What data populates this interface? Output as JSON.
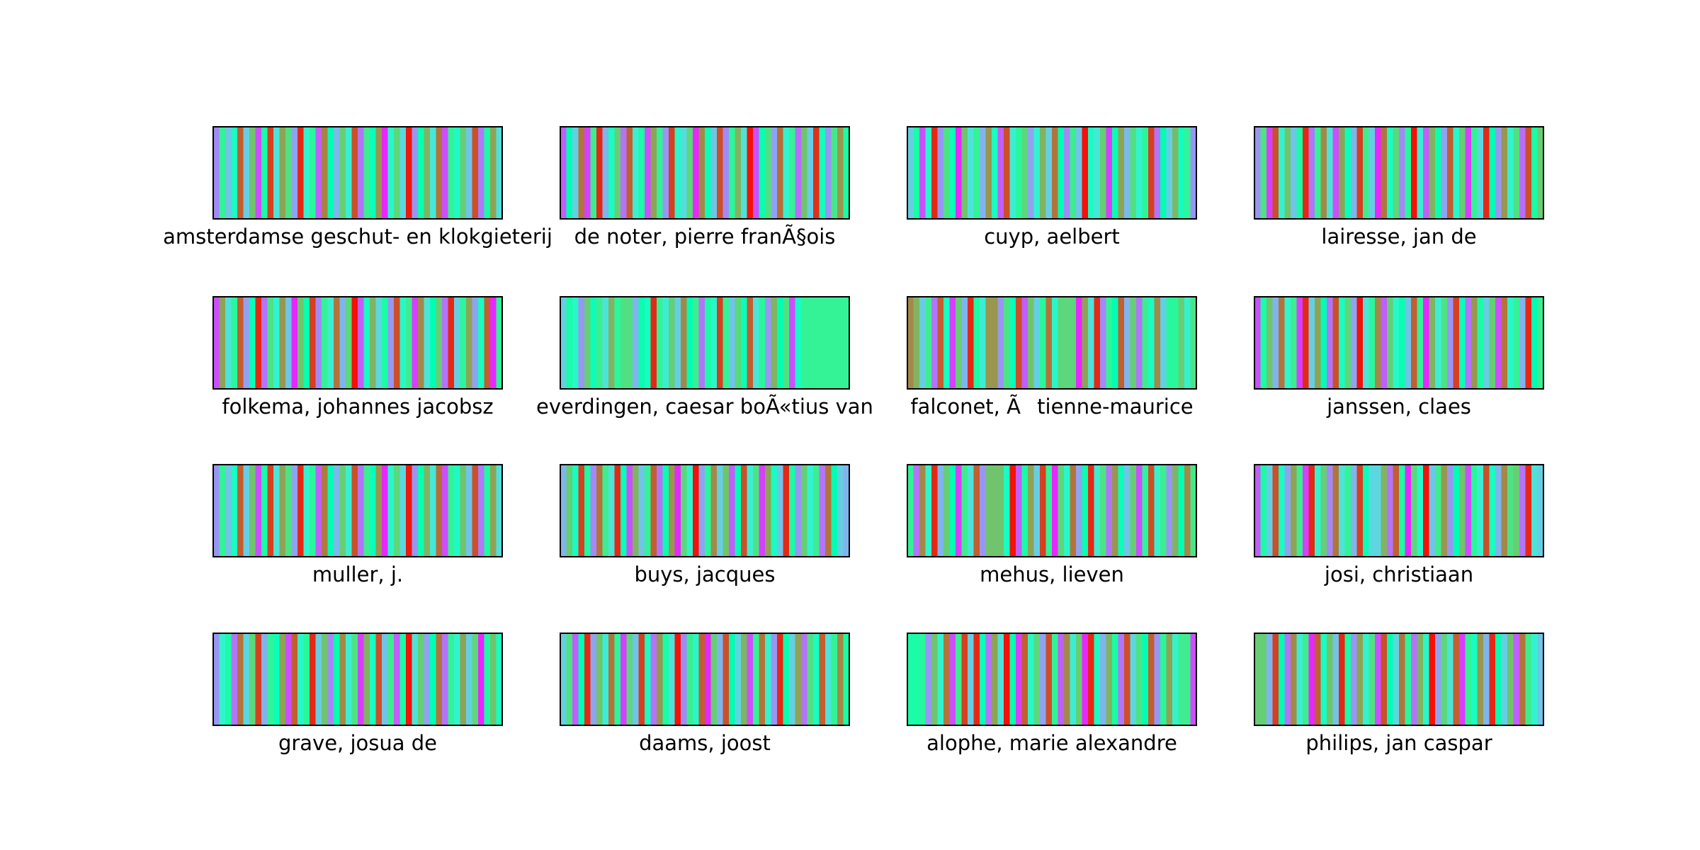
{
  "chart_data": {
    "type": "heatmap",
    "colormap": "rainbow",
    "panels": [
      {
        "label": "amsterdamse geschut- en klokgieterij",
        "values": [
          0.18,
          0.6,
          0.28,
          0.45,
          0.88,
          0.3,
          0.72,
          0.1,
          0.55,
          0.92,
          0.35,
          0.78,
          0.66,
          0.22,
          0.95,
          0.4,
          0.58,
          0.12,
          0.83,
          0.5,
          0.26,
          0.7,
          0.38,
          0.9,
          0.15,
          0.62,
          0.48,
          0.8,
          0.05,
          0.42,
          0.68,
          0.32,
          0.97,
          0.2,
          0.52,
          0.75,
          0.36,
          0.85,
          0.1,
          0.6,
          0.44,
          0.7,
          0.28,
          0.9,
          0.16,
          0.55,
          0.78,
          0.34
        ]
      },
      {
        "label": "de noter, pierre franÃ§ois",
        "values": [
          0.12,
          0.5,
          0.3,
          0.85,
          0.08,
          0.62,
          0.95,
          0.25,
          0.45,
          0.7,
          0.15,
          0.88,
          0.38,
          0.55,
          0.1,
          0.78,
          0.6,
          0.2,
          0.92,
          0.42,
          0.33,
          0.68,
          0.05,
          0.82,
          0.48,
          0.28,
          0.9,
          0.18,
          0.58,
          0.75,
          0.35,
          0.98,
          0.1,
          0.52,
          0.66,
          0.22,
          0.86,
          0.4,
          0.6,
          0.14,
          0.72,
          0.3,
          0.94,
          0.46,
          0.2,
          0.64,
          0.8,
          0.55
        ]
      },
      {
        "label": "cuyp, aelbert",
        "values": [
          0.3,
          0.55,
          0.1,
          0.42,
          0.95,
          0.2,
          0.65,
          0.48,
          0.05,
          0.72,
          0.35,
          0.6,
          0.25,
          0.8,
          0.45,
          0.12,
          0.9,
          0.38,
          0.58,
          0.68,
          0.22,
          0.4,
          0.75,
          0.3,
          0.85,
          0.5,
          0.18,
          0.62,
          0.28,
          0.98,
          0.44,
          0.36,
          0.7,
          0.08,
          0.52,
          0.78,
          0.26,
          0.66,
          0.4,
          0.58,
          0.92,
          0.15,
          0.5,
          0.3,
          0.74,
          0.46,
          0.6,
          0.2
        ]
      },
      {
        "label": "lairesse, jan de",
        "values": [
          0.2,
          0.65,
          0.08,
          0.9,
          0.4,
          0.72,
          0.28,
          0.55,
          0.95,
          0.15,
          0.6,
          0.82,
          0.35,
          0.1,
          0.78,
          0.48,
          0.25,
          0.92,
          0.62,
          0.3,
          0.05,
          0.85,
          0.45,
          0.68,
          0.18,
          0.58,
          0.98,
          0.38,
          0.12,
          0.75,
          0.52,
          0.22,
          0.88,
          0.42,
          0.7,
          0.08,
          0.6,
          0.32,
          0.95,
          0.5,
          0.2,
          0.8,
          0.4,
          0.66,
          0.14,
          0.9,
          0.55,
          0.7
        ]
      },
      {
        "label": "folkema, johannes jacobsz",
        "values": [
          0.1,
          0.78,
          0.35,
          0.58,
          0.88,
          0.22,
          0.48,
          0.95,
          0.15,
          0.65,
          0.4,
          0.8,
          0.28,
          0.05,
          0.72,
          0.52,
          0.92,
          0.18,
          0.6,
          0.38,
          0.85,
          0.25,
          0.68,
          0.98,
          0.12,
          0.45,
          0.75,
          0.32,
          0.55,
          0.2,
          0.9,
          0.42,
          0.62,
          0.08,
          0.82,
          0.35,
          0.5,
          0.7,
          0.15,
          0.95,
          0.3,
          0.58,
          0.78,
          0.22,
          0.45,
          0.88,
          0.05,
          0.6
        ]
      },
      {
        "label": "everdingen, caesar boÃ«tius van",
        "values": [
          0.3,
          0.55,
          0.42,
          0.2,
          0.7,
          0.48,
          0.62,
          0.35,
          0.75,
          0.58,
          0.66,
          0.66,
          0.25,
          0.52,
          0.45,
          0.95,
          0.6,
          0.38,
          0.7,
          0.3,
          0.82,
          0.5,
          0.62,
          0.15,
          0.55,
          0.42,
          0.92,
          0.6,
          0.28,
          0.68,
          0.48,
          0.88,
          0.35,
          0.58,
          0.2,
          0.75,
          0.5,
          0.65,
          0.1,
          0.45,
          0.6,
          0.6,
          0.6,
          0.6,
          0.6,
          0.6,
          0.6,
          0.6
        ]
      },
      {
        "label": "falconet, Ãtienne-maurice",
        "values": [
          0.82,
          0.75,
          0.3,
          0.62,
          0.15,
          0.88,
          0.45,
          0.08,
          0.7,
          0.25,
          0.95,
          0.55,
          0.38,
          0.8,
          0.8,
          0.2,
          0.65,
          0.48,
          0.9,
          0.12,
          0.72,
          0.3,
          0.58,
          0.85,
          0.42,
          0.68,
          0.68,
          0.68,
          0.05,
          0.78,
          0.35,
          0.95,
          0.18,
          0.6,
          0.5,
          0.88,
          0.25,
          0.7,
          0.15,
          0.62,
          0.45,
          0.82,
          0.3,
          0.58,
          0.58,
          0.7,
          0.4,
          0.65
        ]
      },
      {
        "label": "janssen, claes",
        "values": [
          0.1,
          0.55,
          0.72,
          0.25,
          0.85,
          0.4,
          0.62,
          0.08,
          0.95,
          0.3,
          0.78,
          0.5,
          0.15,
          0.9,
          0.45,
          0.68,
          0.22,
          0.98,
          0.35,
          0.58,
          0.82,
          0.12,
          0.7,
          0.42,
          0.52,
          0.28,
          0.88,
          0.6,
          0.05,
          0.75,
          0.38,
          0.65,
          0.2,
          0.92,
          0.48,
          0.15,
          0.8,
          0.55,
          0.3,
          0.7,
          0.1,
          0.85,
          0.42,
          0.6,
          0.25,
          0.95,
          0.5,
          0.62
        ]
      },
      {
        "label": "muller, j.",
        "values": [
          0.2,
          0.6,
          0.28,
          0.45,
          0.88,
          0.3,
          0.72,
          0.1,
          0.55,
          0.92,
          0.35,
          0.78,
          0.65,
          0.22,
          0.95,
          0.4,
          0.58,
          0.12,
          0.84,
          0.5,
          0.26,
          0.7,
          0.38,
          0.9,
          0.15,
          0.62,
          0.48,
          0.8,
          0.05,
          0.42,
          0.68,
          0.32,
          0.97,
          0.2,
          0.52,
          0.75,
          0.36,
          0.86,
          0.1,
          0.6,
          0.44,
          0.72,
          0.28,
          0.9,
          0.16,
          0.56,
          0.78,
          0.34
        ]
      },
      {
        "label": "buys, jacques",
        "values": [
          0.25,
          0.7,
          0.45,
          0.92,
          0.55,
          0.18,
          0.85,
          0.62,
          0.35,
          0.95,
          0.48,
          0.1,
          0.75,
          0.28,
          0.6,
          0.88,
          0.15,
          0.52,
          0.8,
          0.05,
          0.68,
          0.4,
          0.98,
          0.22,
          0.58,
          0.82,
          0.3,
          0.72,
          0.12,
          0.5,
          0.9,
          0.38,
          0.65,
          0.08,
          0.78,
          0.45,
          0.28,
          0.95,
          0.55,
          0.2,
          0.7,
          0.4,
          0.62,
          0.15,
          0.85,
          0.5,
          0.3,
          0.25
        ]
      },
      {
        "label": "mehus, lieven",
        "values": [
          0.6,
          0.15,
          0.82,
          0.4,
          0.95,
          0.25,
          0.7,
          0.5,
          0.08,
          0.62,
          0.35,
          0.88,
          0.2,
          0.72,
          0.72,
          0.72,
          0.45,
          0.98,
          0.12,
          0.55,
          0.78,
          0.3,
          0.92,
          0.6,
          0.05,
          0.68,
          0.42,
          0.85,
          0.22,
          0.52,
          0.95,
          0.38,
          0.65,
          0.15,
          0.8,
          0.48,
          0.28,
          0.7,
          0.1,
          0.58,
          0.9,
          0.4,
          0.62,
          0.2,
          0.75,
          0.5,
          0.82,
          0.64
        ]
      },
      {
        "label": "josi, christiaan",
        "values": [
          0.12,
          0.55,
          0.3,
          0.9,
          0.45,
          0.22,
          0.78,
          0.62,
          0.08,
          0.95,
          0.4,
          0.7,
          0.18,
          0.85,
          0.35,
          0.6,
          0.25,
          0.92,
          0.48,
          0.32,
          0.32,
          0.75,
          0.15,
          0.88,
          0.55,
          0.05,
          0.68,
          0.42,
          0.98,
          0.28,
          0.62,
          0.8,
          0.2,
          0.5,
          0.72,
          0.1,
          0.58,
          0.38,
          0.9,
          0.45,
          0.25,
          0.82,
          0.65,
          0.7,
          0.15,
          0.95,
          0.35,
          0.3
        ]
      },
      {
        "label": "grave, josua de",
        "values": [
          0.2,
          0.4,
          0.55,
          0.15,
          0.85,
          0.32,
          0.68,
          0.92,
          0.25,
          0.6,
          0.48,
          0.78,
          0.1,
          0.88,
          0.42,
          0.58,
          0.95,
          0.3,
          0.72,
          0.18,
          0.52,
          0.82,
          0.38,
          0.65,
          0.08,
          0.75,
          0.45,
          0.9,
          0.28,
          0.62,
          0.12,
          0.55,
          0.98,
          0.35,
          0.7,
          0.22,
          0.5,
          0.85,
          0.15,
          0.6,
          0.4,
          0.78,
          0.3,
          0.68,
          0.05,
          0.55,
          0.72,
          0.45
        ]
      },
      {
        "label": "daams, joost",
        "values": [
          0.3,
          0.65,
          0.12,
          0.5,
          0.95,
          0.22,
          0.72,
          0.38,
          0.85,
          0.58,
          0.08,
          0.68,
          0.28,
          0.92,
          0.45,
          0.15,
          0.8,
          0.55,
          0.35,
          0.98,
          0.18,
          0.62,
          0.42,
          0.88,
          0.05,
          0.7,
          0.25,
          0.9,
          0.5,
          0.32,
          0.75,
          0.1,
          0.6,
          0.85,
          0.4,
          0.2,
          0.95,
          0.52,
          0.3,
          0.78,
          0.15,
          0.66,
          0.45,
          0.88,
          0.35,
          0.6,
          0.82,
          0.55
        ]
      },
      {
        "label": "alophe, marie alexandre",
        "values": [
          0.55,
          0.55,
          0.58,
          0.2,
          0.72,
          0.4,
          0.85,
          0.1,
          0.62,
          0.92,
          0.3,
          0.95,
          0.48,
          0.15,
          0.78,
          0.35,
          0.98,
          0.52,
          0.08,
          0.88,
          0.42,
          0.68,
          0.22,
          0.9,
          0.6,
          0.12,
          0.82,
          0.38,
          0.7,
          0.05,
          0.95,
          0.45,
          0.25,
          0.75,
          0.55,
          0.15,
          0.9,
          0.32,
          0.65,
          0.5,
          0.88,
          0.2,
          0.58,
          0.78,
          0.4,
          0.62,
          0.62,
          0.1
        ]
      },
      {
        "label": "philips, jan caspar",
        "values": [
          0.7,
          0.7,
          0.25,
          0.92,
          0.5,
          0.15,
          0.82,
          0.38,
          0.62,
          0.05,
          0.88,
          0.45,
          0.72,
          0.28,
          0.95,
          0.55,
          0.2,
          0.78,
          0.4,
          0.65,
          0.1,
          0.9,
          0.5,
          0.32,
          0.85,
          0.58,
          0.15,
          0.75,
          0.42,
          0.98,
          0.22,
          0.68,
          0.35,
          0.88,
          0.08,
          0.6,
          0.45,
          0.8,
          0.25,
          0.95,
          0.52,
          0.3,
          0.72,
          0.12,
          0.85,
          0.62,
          0.4,
          0.28
        ]
      }
    ]
  }
}
